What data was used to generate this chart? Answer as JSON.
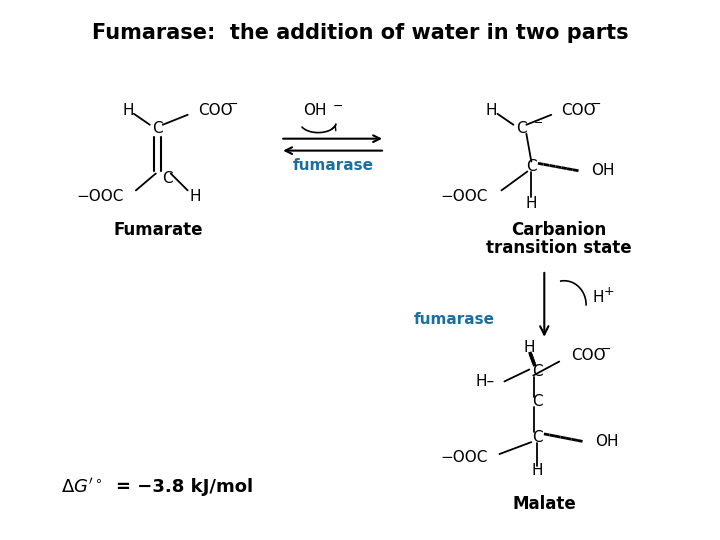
{
  "title": "Fumarase:  the addition of water in two parts",
  "title_fontsize": 15,
  "title_fontweight": "bold",
  "bg_color": "#ffffff",
  "text_color": "#000000",
  "blue_color": "#1a6fa0",
  "figsize": [
    7.2,
    5.4
  ],
  "dpi": 100,
  "fumarate_label": "Fumarate",
  "carbanion_label1": "Carbanion",
  "carbanion_label2": "transition state",
  "malate_label": "Malate",
  "fumarase1": "fumarase",
  "fumarase2": "fumarase",
  "OH_minus": "OH",
  "H_plus": "H",
  "delta_g": "= −3.8 kJ/mol"
}
